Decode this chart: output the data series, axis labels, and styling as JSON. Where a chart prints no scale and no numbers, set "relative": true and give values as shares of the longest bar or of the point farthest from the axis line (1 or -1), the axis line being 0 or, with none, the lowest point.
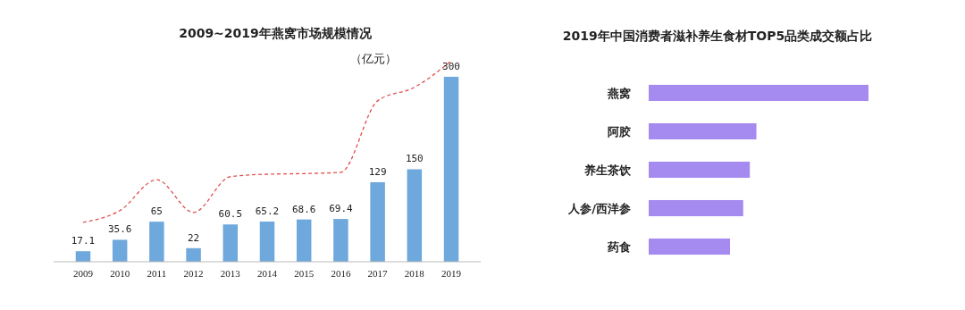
{
  "chart_data": [
    {
      "type": "bar",
      "title": "2009~2019年燕窝市场规模情况",
      "ylabel": "（亿元）",
      "categories": [
        "2009",
        "2010",
        "2011",
        "2012",
        "2013",
        "2014",
        "2015",
        "2016",
        "2017",
        "2018",
        "2019"
      ],
      "series": [
        {
          "type": "bar",
          "color": "#6fa8dc",
          "values": [
            17.1,
            35.6,
            65,
            22,
            60.5,
            65.2,
            68.6,
            69.4,
            129,
            150,
            300
          ],
          "value_labels": [
            "17.1",
            "35.6",
            "65",
            "22",
            "60.5",
            "65.2",
            "68.6",
            "69.4",
            "129",
            "150",
            "300"
          ]
        },
        {
          "type": "line",
          "color": "#e05050",
          "line_style": "dashed",
          "values": [
            64,
            83,
            133,
            80,
            138,
            142,
            143,
            145,
            261,
            283,
            326
          ]
        }
      ]
    },
    {
      "type": "bar",
      "orientation": "horizontal",
      "relative": true,
      "title": "2019年中国消费者滋补养生食材TOP5品类成交额占比",
      "categories": [
        "燕窝",
        "阿胶",
        "养生茶饮",
        "人参/西洋参",
        "药食"
      ],
      "values": [
        1,
        0.49,
        0.46,
        0.43,
        0.37
      ],
      "color": "#a58af0"
    }
  ]
}
